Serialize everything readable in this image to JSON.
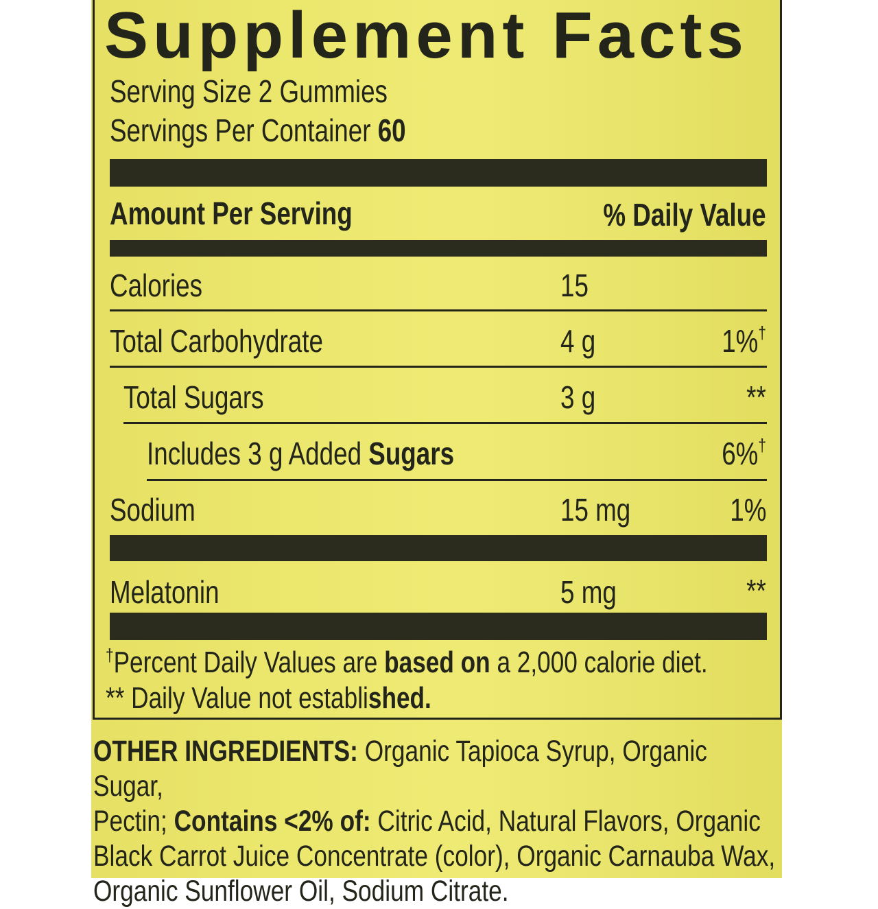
{
  "title": "Supplement Facts",
  "serving_size": "Serving Size 2 Gummies",
  "servings_per_container_label": "Servings Per Container",
  "servings_per_container": "60",
  "header": {
    "amount": "Amount Per Serving",
    "dv": "% Daily Value"
  },
  "rows": [
    {
      "name": "Calories",
      "amount": "15",
      "dv": ""
    },
    {
      "name": "Total Carbohydrate",
      "amount": "4 g",
      "dv": "1%",
      "mark": "†"
    },
    {
      "name": "Total Sugars",
      "amount": "3 g",
      "dv": "**"
    },
    {
      "name_pre": "Includes 3 g Added",
      "name_bold": "Sugars",
      "amount": "",
      "dv": "6%",
      "mark": "†"
    },
    {
      "name": "Sodium",
      "amount": "15 mg",
      "dv": "1%"
    },
    {
      "name": "Melatonin",
      "amount": "5 mg",
      "dv": "**"
    }
  ],
  "footnotes": {
    "f1_mark": "†",
    "f1_a": "Percent Daily Values are ",
    "f1_b": "based on",
    "f1_c": " a 2,000 calorie diet.",
    "f2_mark": "**",
    "f2_a": " Daily Value not establi",
    "f2_b": "shed."
  },
  "ingredients": {
    "label": "OTHER INGREDIENTS:",
    "l1": " Organic Tapioca Syrup, Organic Sugar,",
    "l2a": "Pectin; ",
    "l2b": "Contains <2% of:",
    "l2c": " Citric Acid, Natural Flavors, Organic",
    "l3": "Black Carrot Juice Concentrate (color), Organic Carnauba Wax,",
    "l4": "Organic Sunflower Oil, Sodium Citrate."
  },
  "colors": {
    "label_bg": "#eae66c",
    "ink": "#23251a"
  }
}
